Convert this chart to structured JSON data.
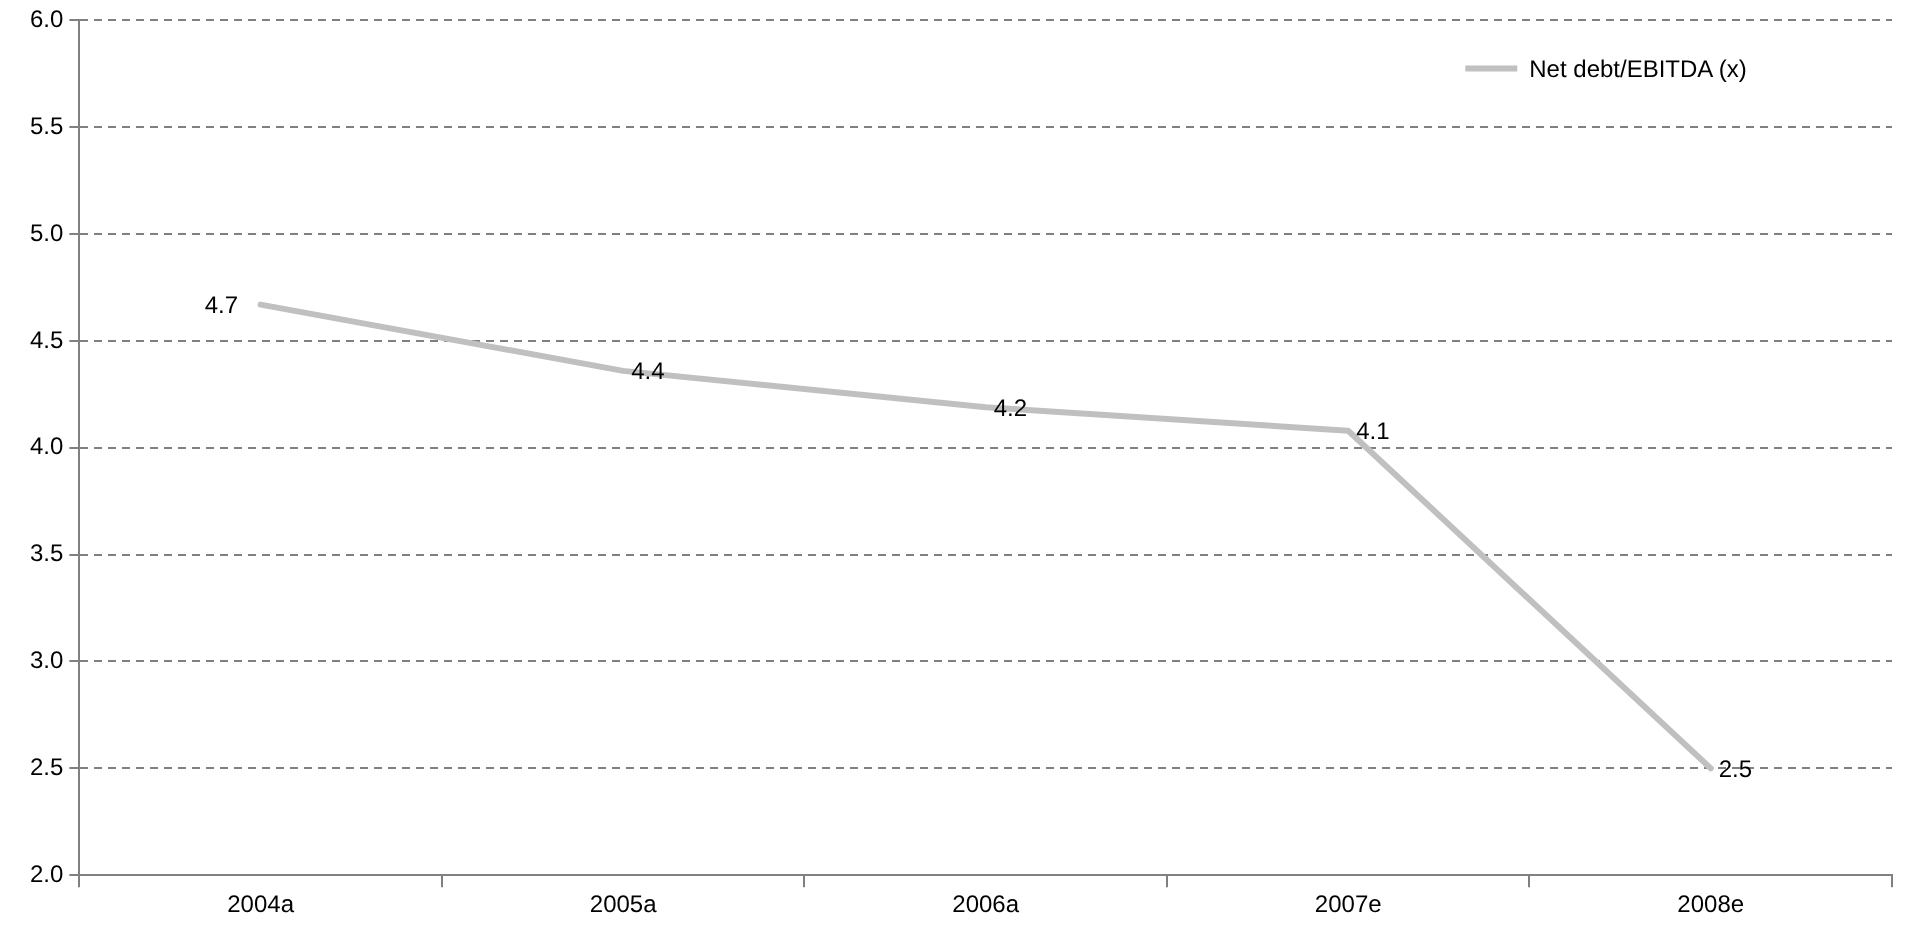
{
  "chart_data": {
    "type": "line",
    "categories": [
      "2004a",
      "2005a",
      "2006a",
      "2007e",
      "2008e"
    ],
    "series": [
      {
        "name": "Net debt/EBITDA (x)",
        "color": "#c0c0c0",
        "values": [
          4.67,
          4.36,
          4.19,
          4.08,
          2.5
        ],
        "value_labels": [
          "4.7",
          "4.4",
          "4.2",
          "4.1",
          "2.5"
        ]
      }
    ],
    "ylim": [
      2.0,
      6.0
    ],
    "yticks": [
      {
        "value": 2,
        "label": "2.0"
      },
      {
        "value": 2.5,
        "label": "2.5"
      },
      {
        "value": 3,
        "label": "3.0"
      },
      {
        "value": 3.5,
        "label": "3.5"
      },
      {
        "value": 4,
        "label": "4.0"
      },
      {
        "value": 4.5,
        "label": "4.5"
      },
      {
        "value": 5,
        "label": "5.0"
      },
      {
        "value": 5.5,
        "label": "5.5"
      },
      {
        "value": 6,
        "label": "6.0"
      }
    ],
    "grid": "y",
    "legend": "top right",
    "marker": "none",
    "line_style": "solid"
  }
}
